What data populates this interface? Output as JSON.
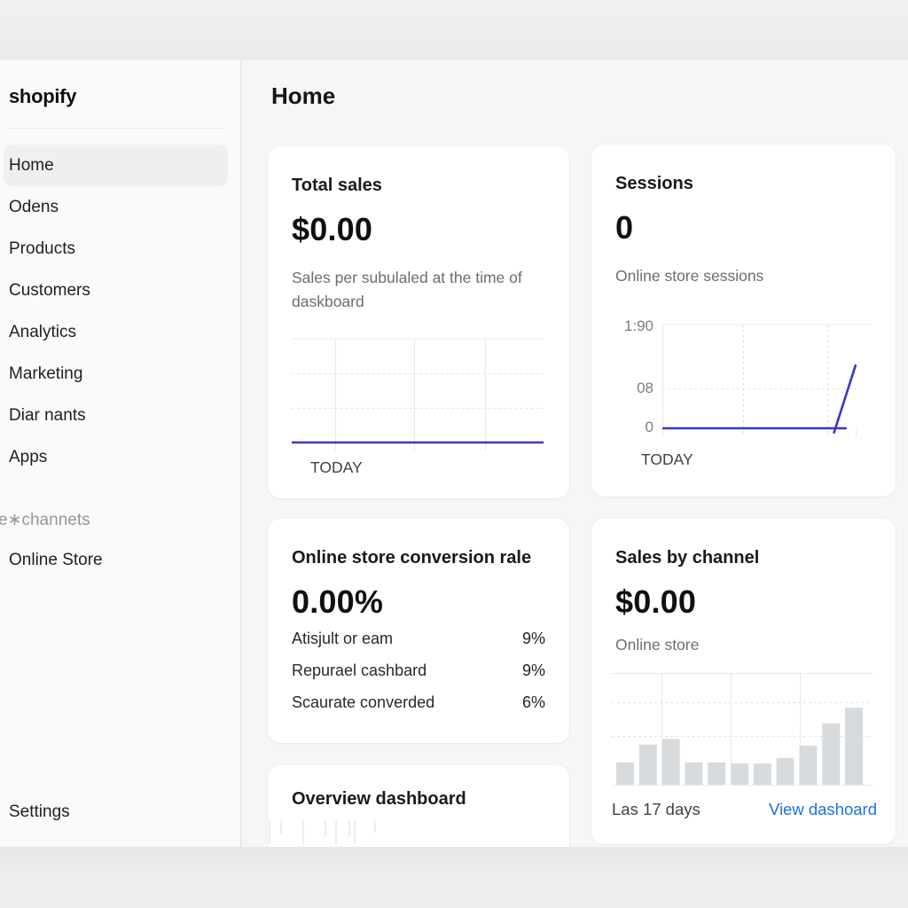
{
  "app": {
    "brand": "shopify"
  },
  "sidebar": {
    "items": [
      {
        "label": "Home",
        "active": true
      },
      {
        "label": "Odens",
        "active": false
      },
      {
        "label": "Products",
        "active": false
      },
      {
        "label": "Customers",
        "active": false
      },
      {
        "label": "Analytics",
        "active": false
      },
      {
        "label": "Marketing",
        "active": false
      },
      {
        "label": "Diar nants",
        "active": false
      },
      {
        "label": "Apps",
        "active": false
      }
    ],
    "section_label": "e∗channets",
    "channels": [
      {
        "label": "Online Store"
      }
    ],
    "settings_label": "Settings"
  },
  "header": {
    "title": "Home"
  },
  "cards": {
    "total_sales": {
      "title": "Total sales",
      "value": "$0.00",
      "description": "Sales per subulaled at the time of daskboard",
      "axis_label": "TODAY"
    },
    "sessions": {
      "title": "Sessions",
      "value": "0",
      "subtitle": "Online store sessions",
      "y_ticks": [
        "1:90",
        "08",
        "0"
      ],
      "axis_label": "TODAY"
    },
    "conversion": {
      "title": "Online store conversion rale",
      "value": "0.00%",
      "rows": [
        {
          "label": "Atisjult or eam",
          "value": "9%"
        },
        {
          "label": "Repurael cashbard",
          "value": "9%"
        },
        {
          "label": "Scaurate converded",
          "value": "6%"
        }
      ]
    },
    "sales_by_channel": {
      "title": "Sales by channel",
      "value": "$0.00",
      "subtitle": "Online store",
      "footer_left": "Las 17 days",
      "footer_link": "View dashoard"
    },
    "overview": {
      "title": "Overview dashboard"
    }
  },
  "chart_data": [
    {
      "id": "total_sales",
      "type": "line",
      "title": "Total sales today",
      "x_axis_label": "TODAY",
      "series": [
        {
          "name": "sales",
          "points_pct": [
            [
              0,
              0
            ],
            [
              100,
              0
            ]
          ]
        }
      ]
    },
    {
      "id": "sessions",
      "type": "line",
      "title": "Online store sessions today",
      "x_axis_label": "TODAY",
      "y_tick_labels": [
        "1:90",
        "08",
        "0"
      ],
      "series": [
        {
          "name": "sessions-flat",
          "points_pct": [
            [
              0,
              0
            ],
            [
              94,
              0
            ]
          ]
        },
        {
          "name": "sessions-spike",
          "points_pct": [
            [
              88,
              -4
            ],
            [
              99,
              60
            ]
          ]
        }
      ]
    },
    {
      "id": "sales_by_channel",
      "type": "bar",
      "title": "Sales by channel - last days",
      "values_pct": [
        20,
        36,
        41,
        20,
        20,
        19,
        19,
        24,
        35,
        55,
        69
      ]
    }
  ],
  "colors": {
    "accent_line": "#3a35cb",
    "link": "#1f6fe0",
    "bars": "#d8dbde"
  }
}
